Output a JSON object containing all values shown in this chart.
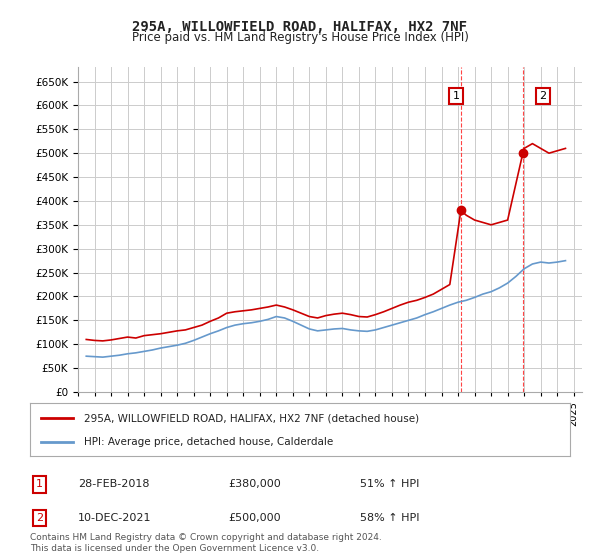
{
  "title": "295A, WILLOWFIELD ROAD, HALIFAX, HX2 7NF",
  "subtitle": "Price paid vs. HM Land Registry's House Price Index (HPI)",
  "ylabel_ticks": [
    "£0",
    "£50K",
    "£100K",
    "£150K",
    "£200K",
    "£250K",
    "£300K",
    "£350K",
    "£400K",
    "£450K",
    "£500K",
    "£550K",
    "£600K",
    "£650K"
  ],
  "ylim": [
    0,
    680000
  ],
  "yticks": [
    0,
    50000,
    100000,
    150000,
    200000,
    250000,
    300000,
    350000,
    400000,
    450000,
    500000,
    550000,
    600000,
    650000
  ],
  "xlim_start": 1995.0,
  "xlim_end": 2025.5,
  "background_color": "#ffffff",
  "grid_color": "#cccccc",
  "legend1_label": "295A, WILLOWFIELD ROAD, HALIFAX, HX2 7NF (detached house)",
  "legend2_label": "HPI: Average price, detached house, Calderdale",
  "annotation1_num": "1",
  "annotation1_date": "28-FEB-2018",
  "annotation1_price": "£380,000",
  "annotation1_hpi": "51% ↑ HPI",
  "annotation2_num": "2",
  "annotation2_date": "10-DEC-2021",
  "annotation2_price": "£500,000",
  "annotation2_hpi": "58% ↑ HPI",
  "copyright": "Contains HM Land Registry data © Crown copyright and database right 2024.\nThis data is licensed under the Open Government Licence v3.0.",
  "red_line_color": "#cc0000",
  "blue_line_color": "#6699cc",
  "marker1_color": "#cc0000",
  "marker2_color": "#cc0000",
  "vline_color": "#ff4444",
  "annotation_box_color": "#cc0000",
  "red_x": [
    1995.5,
    1996.0,
    1996.5,
    1997.0,
    1997.5,
    1998.0,
    1998.5,
    1999.0,
    1999.5,
    2000.0,
    2000.5,
    2001.0,
    2001.5,
    2002.0,
    2002.5,
    2003.0,
    2003.5,
    2004.0,
    2004.5,
    2005.0,
    2005.5,
    2006.0,
    2006.5,
    2007.0,
    2007.5,
    2008.0,
    2008.5,
    2009.0,
    2009.5,
    2010.0,
    2010.5,
    2011.0,
    2011.5,
    2012.0,
    2012.5,
    2013.0,
    2013.5,
    2014.0,
    2014.5,
    2015.0,
    2015.5,
    2016.0,
    2016.5,
    2017.0,
    2017.5,
    2018.17,
    2018.5,
    2019.0,
    2019.5,
    2020.0,
    2020.5,
    2021.0,
    2021.92,
    2022.0,
    2022.5,
    2023.0,
    2023.5,
    2024.0,
    2024.5
  ],
  "red_y": [
    110000,
    108000,
    107000,
    109000,
    112000,
    115000,
    113000,
    118000,
    120000,
    122000,
    125000,
    128000,
    130000,
    135000,
    140000,
    148000,
    155000,
    165000,
    168000,
    170000,
    172000,
    175000,
    178000,
    182000,
    178000,
    172000,
    165000,
    158000,
    155000,
    160000,
    163000,
    165000,
    162000,
    158000,
    157000,
    162000,
    168000,
    175000,
    182000,
    188000,
    192000,
    198000,
    205000,
    215000,
    225000,
    380000,
    370000,
    360000,
    355000,
    350000,
    355000,
    360000,
    500000,
    510000,
    520000,
    510000,
    500000,
    505000,
    510000
  ],
  "blue_x": [
    1995.5,
    1996.0,
    1996.5,
    1997.0,
    1997.5,
    1998.0,
    1998.5,
    1999.0,
    1999.5,
    2000.0,
    2000.5,
    2001.0,
    2001.5,
    2002.0,
    2002.5,
    2003.0,
    2003.5,
    2004.0,
    2004.5,
    2005.0,
    2005.5,
    2006.0,
    2006.5,
    2007.0,
    2007.5,
    2008.0,
    2008.5,
    2009.0,
    2009.5,
    2010.0,
    2010.5,
    2011.0,
    2011.5,
    2012.0,
    2012.5,
    2013.0,
    2013.5,
    2014.0,
    2014.5,
    2015.0,
    2015.5,
    2016.0,
    2016.5,
    2017.0,
    2017.5,
    2018.0,
    2018.5,
    2019.0,
    2019.5,
    2020.0,
    2020.5,
    2021.0,
    2021.5,
    2022.0,
    2022.5,
    2023.0,
    2023.5,
    2024.0,
    2024.5
  ],
  "blue_y": [
    75000,
    74000,
    73000,
    75000,
    77000,
    80000,
    82000,
    85000,
    88000,
    92000,
    95000,
    98000,
    102000,
    108000,
    115000,
    122000,
    128000,
    135000,
    140000,
    143000,
    145000,
    148000,
    152000,
    158000,
    155000,
    148000,
    140000,
    132000,
    128000,
    130000,
    132000,
    133000,
    130000,
    128000,
    127000,
    130000,
    135000,
    140000,
    145000,
    150000,
    155000,
    162000,
    168000,
    175000,
    182000,
    188000,
    192000,
    198000,
    205000,
    210000,
    218000,
    228000,
    242000,
    258000,
    268000,
    272000,
    270000,
    272000,
    275000
  ],
  "sale1_x": 2018.17,
  "sale1_y": 380000,
  "sale2_x": 2021.92,
  "sale2_y": 500000,
  "vline1_x": 2018.17,
  "vline2_x": 2021.92
}
